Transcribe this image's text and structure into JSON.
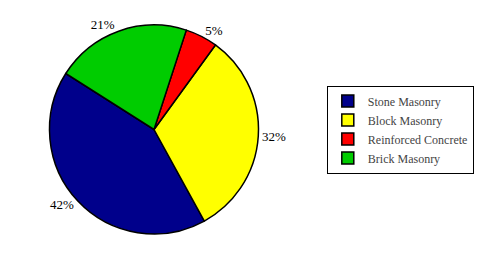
{
  "chart_data": {
    "type": "pie",
    "categories": [
      "Stone Masonry",
      "Block Masonry",
      "Reinforced Concrete",
      "Brick Masonry"
    ],
    "values": [
      42,
      32,
      5,
      21
    ],
    "value_labels": [
      "42%",
      "32%",
      "5%",
      "21%"
    ],
    "colors": [
      "#00008B",
      "#FFFF00",
      "#FF0000",
      "#00CC00"
    ],
    "data_labels": true,
    "legend": "right"
  }
}
